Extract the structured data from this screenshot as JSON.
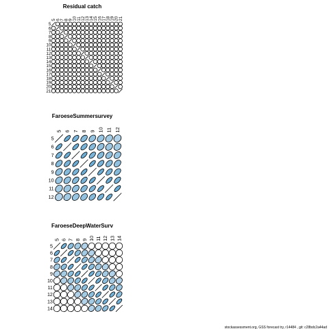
{
  "footer": "stockassessment.org, GSS forecast try, r14484 , git: c28bdc2a44ad",
  "colors": {
    "positive": "#5aa3cf",
    "light": "#d6e6f2",
    "stroke": "#000000",
    "background": "#ffffff"
  },
  "chart_data": [
    {
      "type": "heatmap",
      "title": "Residual catch",
      "ages": [
        5,
        6,
        7,
        8,
        9,
        10,
        11,
        12,
        13,
        14,
        15,
        16,
        17,
        18,
        19,
        20,
        21
      ],
      "correlation": "near zero off diagonal (all circles)"
    },
    {
      "type": "heatmap",
      "title": "FaroeseSummersurvey",
      "ages": [
        5,
        6,
        7,
        8,
        9,
        10,
        11,
        12
      ],
      "correlation": [
        [
          1.0,
          0.85,
          0.75,
          0.65,
          0.55,
          0.5,
          0.4,
          0.3
        ],
        [
          0.85,
          1.0,
          0.85,
          0.75,
          0.65,
          0.55,
          0.45,
          0.4
        ],
        [
          0.75,
          0.85,
          1.0,
          0.85,
          0.75,
          0.65,
          0.55,
          0.5
        ],
        [
          0.65,
          0.75,
          0.85,
          1.0,
          0.85,
          0.75,
          0.65,
          0.55
        ],
        [
          0.55,
          0.65,
          0.75,
          0.85,
          1.0,
          0.85,
          0.75,
          0.65
        ],
        [
          0.5,
          0.55,
          0.65,
          0.75,
          0.85,
          1.0,
          0.85,
          0.75
        ],
        [
          0.4,
          0.45,
          0.55,
          0.65,
          0.75,
          0.85,
          1.0,
          0.85
        ],
        [
          0.3,
          0.4,
          0.5,
          0.55,
          0.65,
          0.75,
          0.85,
          1.0
        ]
      ]
    },
    {
      "type": "heatmap",
      "title": "FaroeseDeepWaterSurv",
      "ages": [
        5,
        6,
        7,
        8,
        9,
        10,
        11,
        12,
        13,
        14
      ],
      "correlation": [
        [
          1.0,
          0.8,
          0.6,
          0.4,
          0.3,
          0.15,
          0.1,
          0.05,
          0.05,
          0.05
        ],
        [
          0.8,
          1.0,
          0.8,
          0.6,
          0.4,
          0.3,
          0.15,
          0.1,
          0.05,
          0.05
        ],
        [
          0.6,
          0.8,
          1.0,
          0.8,
          0.6,
          0.4,
          0.3,
          0.15,
          0.1,
          0.05
        ],
        [
          0.4,
          0.6,
          0.8,
          1.0,
          0.8,
          0.6,
          0.4,
          0.3,
          0.15,
          0.1
        ],
        [
          0.3,
          0.4,
          0.6,
          0.8,
          1.0,
          0.8,
          0.6,
          0.4,
          0.3,
          0.15
        ],
        [
          0.15,
          0.3,
          0.4,
          0.6,
          0.8,
          1.0,
          0.8,
          0.6,
          0.4,
          0.3
        ],
        [
          0.1,
          0.15,
          0.3,
          0.4,
          0.6,
          0.8,
          1.0,
          0.8,
          0.6,
          0.4
        ],
        [
          0.05,
          0.1,
          0.15,
          0.3,
          0.4,
          0.6,
          0.8,
          1.0,
          0.8,
          0.6
        ],
        [
          0.05,
          0.05,
          0.1,
          0.15,
          0.3,
          0.4,
          0.6,
          0.8,
          1.0,
          0.8
        ],
        [
          0.05,
          0.05,
          0.05,
          0.1,
          0.15,
          0.3,
          0.4,
          0.6,
          0.8,
          1.0
        ]
      ]
    }
  ]
}
